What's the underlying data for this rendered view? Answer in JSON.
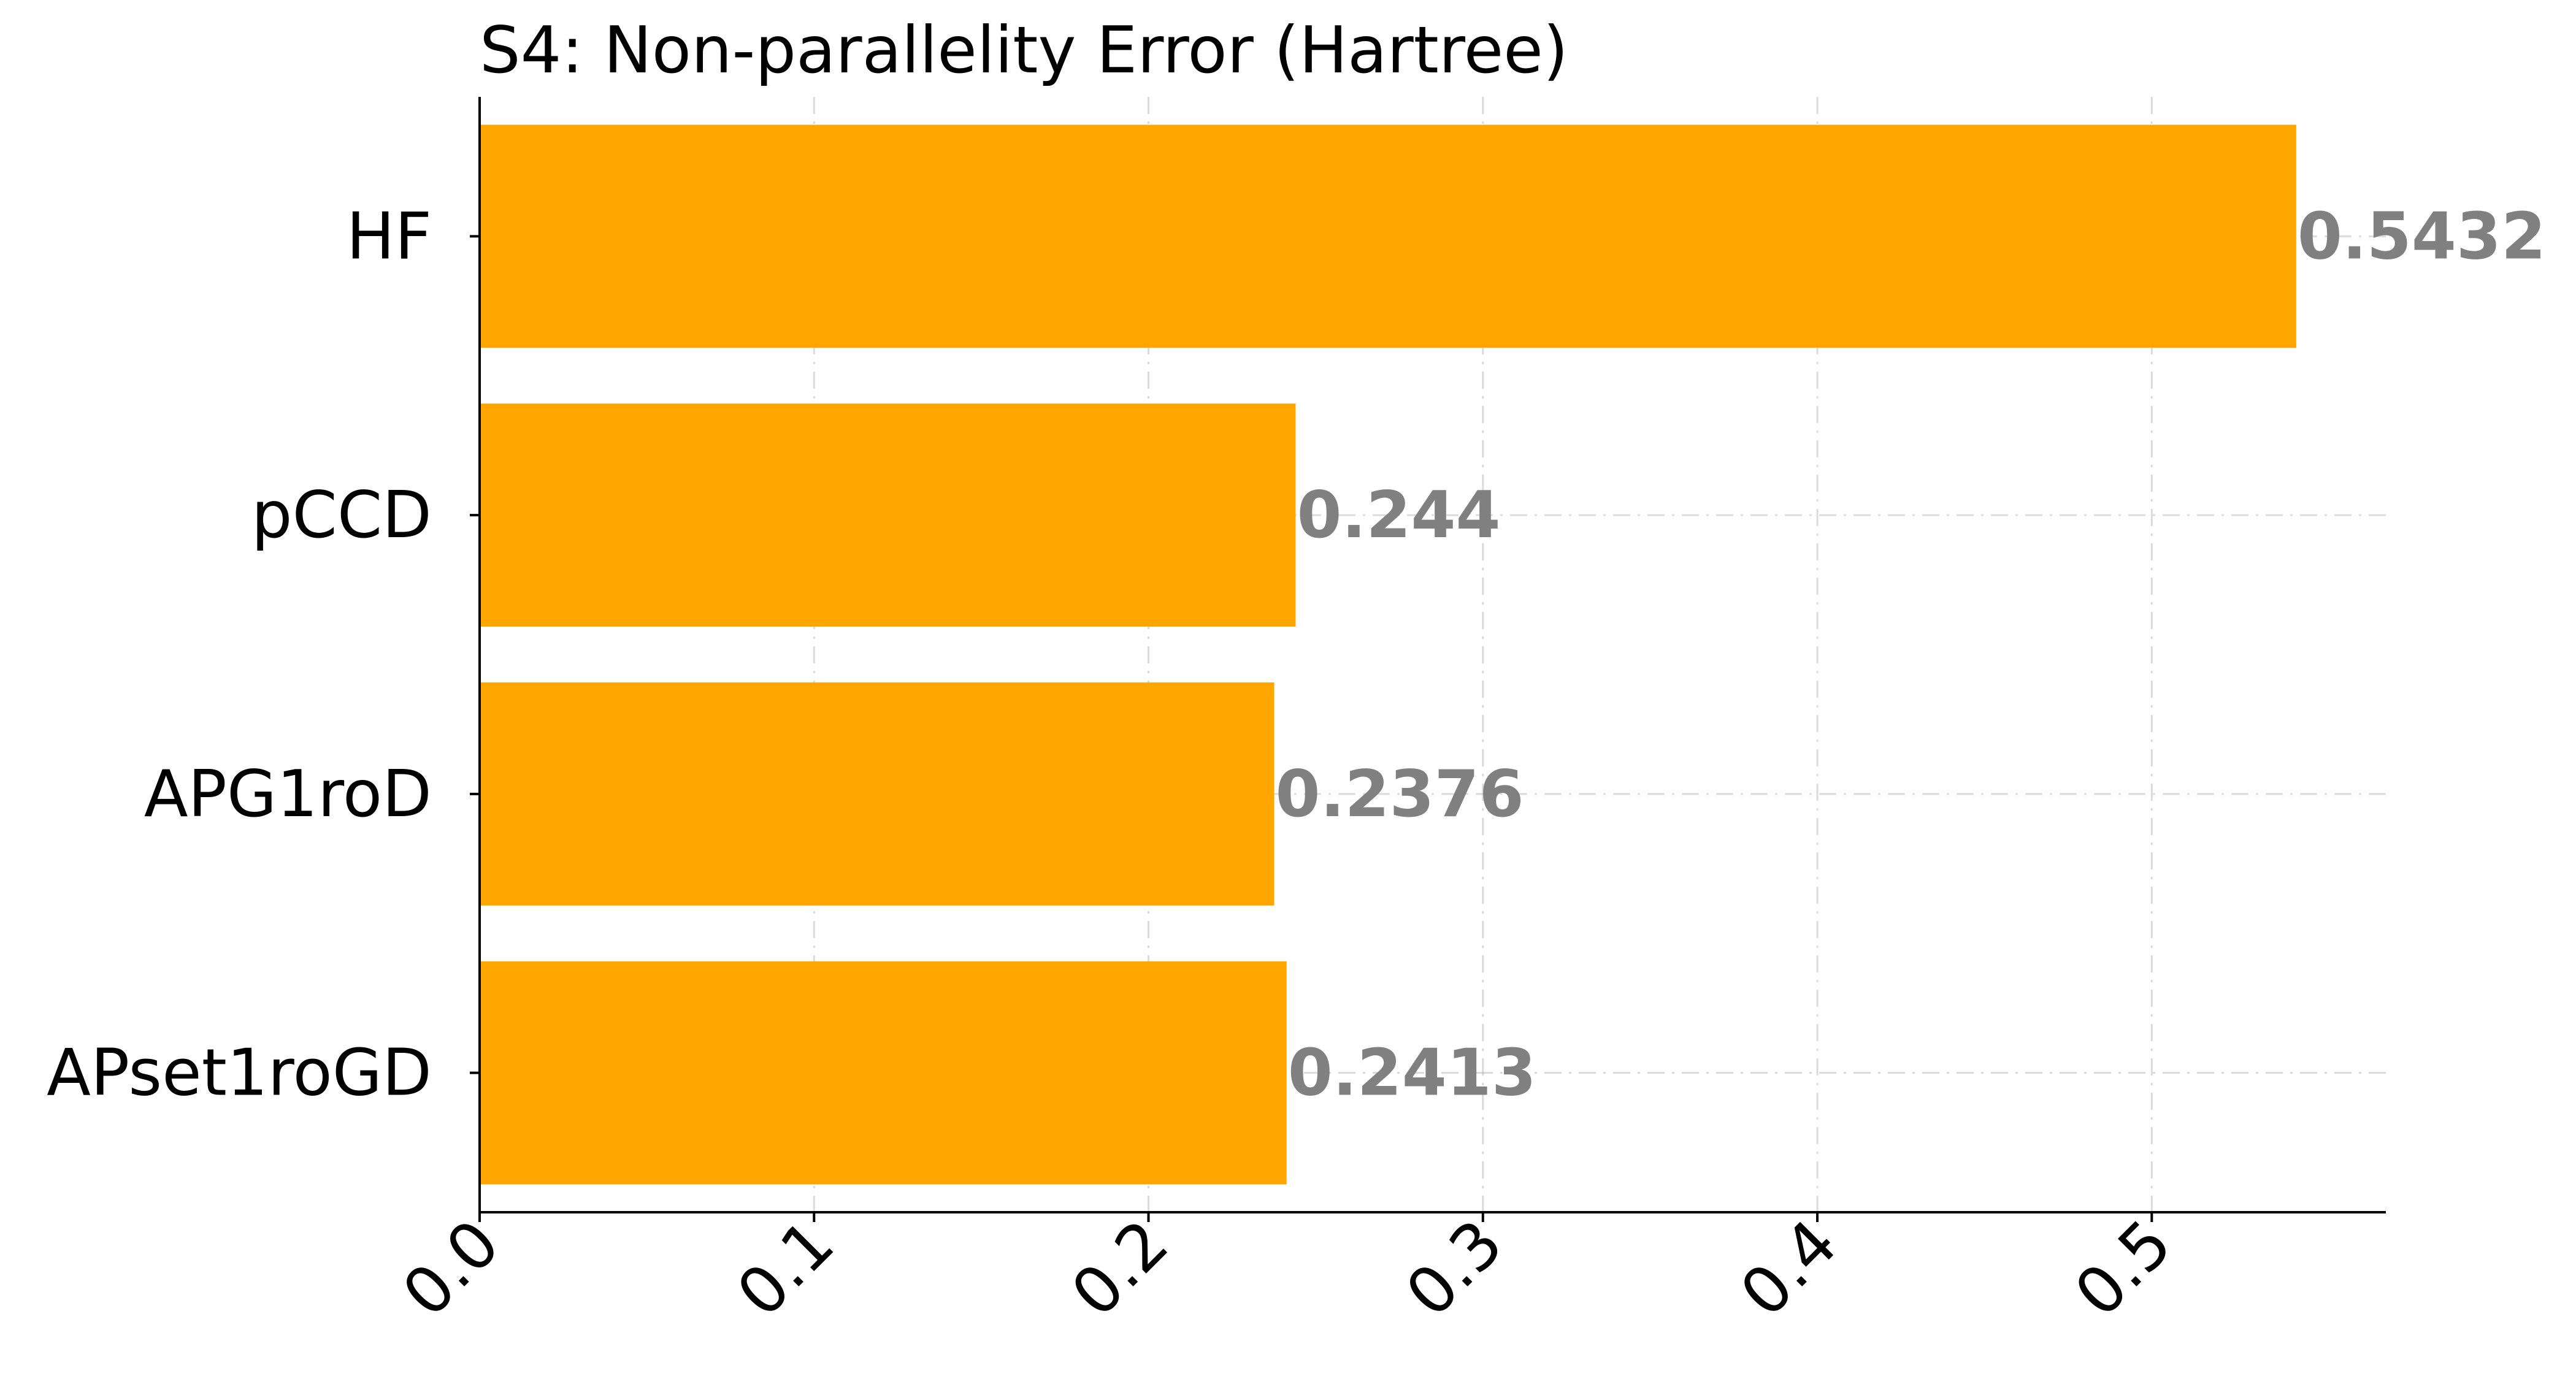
{
  "chart_data": {
    "type": "bar",
    "orientation": "horizontal",
    "title": "S4: Non-parallelity Error (Hartree)",
    "xlabel": "",
    "ylabel": "",
    "categories": [
      "HF",
      "pCCD",
      "APG1roD",
      "APset1roGD"
    ],
    "values": [
      0.5432,
      0.244,
      0.2376,
      0.2413
    ],
    "value_labels": [
      "0.5432",
      "0.244",
      "0.2376",
      "0.2413"
    ],
    "xlim": [
      0,
      0.57
    ],
    "xticks": [
      0.0,
      0.1,
      0.2,
      0.3,
      0.4,
      0.5
    ],
    "xtick_labels": [
      "0.0",
      "0.1",
      "0.2",
      "0.3",
      "0.4",
      "0.5"
    ],
    "grid": true,
    "bar_color": "#FFA500",
    "value_label_color": "#808080"
  }
}
